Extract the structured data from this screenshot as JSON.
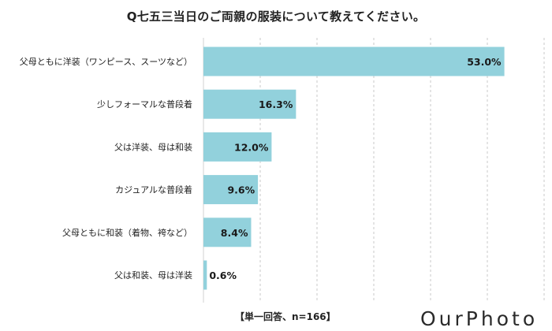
{
  "chart_data": {
    "type": "bar",
    "orientation": "horizontal",
    "title": "Q七五三当日のご両親の服装について教えてください。",
    "categories": [
      "父母ともに洋装（ワンピース、スーツなど）",
      "少しフォーマルな普段着",
      "父は洋装、母は和装",
      "カジュアルな普段着",
      "父母ともに和装（着物、袴など）",
      "父は和装、母は洋装"
    ],
    "values": [
      53.0,
      16.3,
      12.0,
      9.6,
      8.4,
      0.6
    ],
    "value_labels": [
      "53.0%",
      "16.3%",
      "12.0%",
      "9.6%",
      "8.4%",
      "0.6%"
    ],
    "xlim": [
      0,
      60
    ],
    "grid": "vertical dashed",
    "bar_color": "#92d1dc",
    "note": "【単一回答、n=166】"
  },
  "brand": {
    "logo_text": "OurPhoto"
  }
}
